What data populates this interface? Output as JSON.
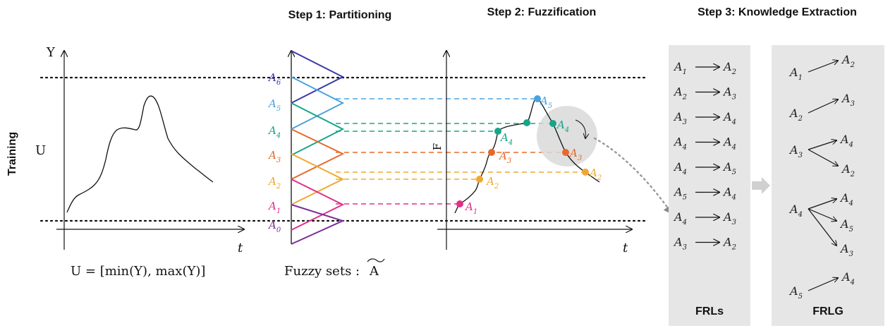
{
  "headers": {
    "step1": "Step 1: Partitioning",
    "step2": "Step 2: Fuzzification",
    "step3": "Step 3: Knowledge Extraction"
  },
  "training": {
    "side_label": "Training",
    "y_axis": "Y",
    "u_label": "U",
    "t_axis": "t",
    "universe_formula": "U  = [min(Y), max(Y)]"
  },
  "partitioning": {
    "sets": [
      {
        "name": "A",
        "sub": "6",
        "color": "#3a3aa8"
      },
      {
        "name": "A",
        "sub": "5",
        "color": "#4aa3e0"
      },
      {
        "name": "A",
        "sub": "4",
        "color": "#17a589"
      },
      {
        "name": "A",
        "sub": "3",
        "color": "#e8682a"
      },
      {
        "name": "A",
        "sub": "2",
        "color": "#f0a830"
      },
      {
        "name": "A",
        "sub": "1",
        "color": "#e0308a"
      },
      {
        "name": "A",
        "sub": "0",
        "color": "#7b2d9a"
      }
    ],
    "caption": "Fuzzy sets :",
    "tilde_symbol": "A"
  },
  "fuzzification": {
    "f_axis": "F",
    "t_axis": "t",
    "labels": [
      {
        "name": "A",
        "sub": "5",
        "color": "#4aa3e0"
      },
      {
        "name": "A",
        "sub": "4",
        "color": "#17a589"
      },
      {
        "name": "A",
        "sub": "4",
        "color": "#17a589"
      },
      {
        "name": "A",
        "sub": "3",
        "color": "#e8682a"
      },
      {
        "name": "A",
        "sub": "3",
        "color": "#e8682a"
      },
      {
        "name": "A",
        "sub": "2",
        "color": "#f0a830"
      },
      {
        "name": "A",
        "sub": "2",
        "color": "#f0a830"
      },
      {
        "name": "A",
        "sub": "1",
        "color": "#e0308a"
      }
    ]
  },
  "frls": {
    "title": "FRLs",
    "rules": [
      {
        "from": "1",
        "to": "2"
      },
      {
        "from": "2",
        "to": "3"
      },
      {
        "from": "3",
        "to": "4"
      },
      {
        "from": "4",
        "to": "4"
      },
      {
        "from": "4",
        "to": "5"
      },
      {
        "from": "5",
        "to": "4"
      },
      {
        "from": "4",
        "to": "3"
      },
      {
        "from": "3",
        "to": "2"
      }
    ]
  },
  "frlg": {
    "title": "FRLG",
    "groups": [
      {
        "from": "1",
        "to": [
          "2"
        ]
      },
      {
        "from": "2",
        "to": [
          "3"
        ]
      },
      {
        "from": "3",
        "to": [
          "4",
          "2"
        ]
      },
      {
        "from": "4",
        "to": [
          "4",
          "5",
          "3"
        ]
      },
      {
        "from": "5",
        "to": [
          "4"
        ]
      }
    ]
  },
  "colors": {
    "panel_bg": "#e6e6e6",
    "arrow_gray": "#d0d0d0",
    "highlight": "#d9d9d9"
  }
}
